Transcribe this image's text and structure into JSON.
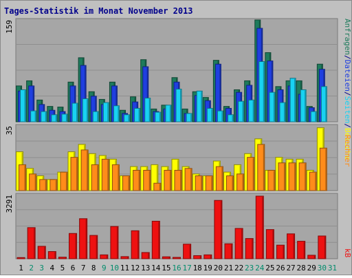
{
  "title": "Tages-Statistik im Monat November 2013",
  "colors": {
    "background": "#C0C0C0",
    "plot": "#A6A6A6",
    "grid": "#8E8E8E",
    "border": "#8A8A8A",
    "hits": "#1E7B5C",
    "files": "#1F3FE0",
    "pages": "#19D2F2",
    "visits": "#FFFF00",
    "sites": "#FF8C1A",
    "kbytes": "#EE1111",
    "title": "#00008B",
    "weekend_day": "#008B6B"
  },
  "chart_data": [
    {
      "type": "bar",
      "name": "top",
      "ymax_label": "159",
      "ylim": [
        0,
        159
      ],
      "grid": true,
      "categories": [
        "1",
        "2",
        "3",
        "4",
        "5",
        "6",
        "7",
        "8",
        "9",
        "10",
        "11",
        "12",
        "13",
        "14",
        "15",
        "16",
        "17",
        "18",
        "19",
        "20",
        "21",
        "22",
        "23",
        "24",
        "25",
        "26",
        "27",
        "28",
        "29",
        "30",
        "31"
      ],
      "series": [
        {
          "name": "Anfragen",
          "color_key": "hits",
          "values": [
            56,
            64,
            34,
            24,
            23,
            62,
            100,
            47,
            35,
            62,
            18,
            39,
            97,
            20,
            26,
            69,
            20,
            47,
            38,
            96,
            24,
            50,
            64,
            159,
            108,
            55,
            64,
            64,
            24,
            90,
            0
          ]
        },
        {
          "name": "Dateien",
          "color_key": "files",
          "values": [
            48,
            56,
            27,
            18,
            16,
            56,
            88,
            40,
            27,
            56,
            13,
            31,
            86,
            16,
            20,
            62,
            13,
            41,
            33,
            90,
            21,
            46,
            57,
            146,
            95,
            50,
            56,
            43,
            22,
            82,
            0
          ]
        },
        {
          "name": "Seiten",
          "color_key": "pages",
          "values": [
            50,
            17,
            16,
            11,
            12,
            29,
            36,
            16,
            30,
            25,
            11,
            21,
            37,
            15,
            26,
            51,
            13,
            48,
            21,
            17,
            11,
            32,
            34,
            94,
            46,
            30,
            68,
            50,
            16,
            55,
            0
          ]
        }
      ],
      "legend_labels": [
        "Anfragen",
        "/",
        "Dateien",
        "/",
        "Seiten",
        "/",
        "Besuche"
      ]
    },
    {
      "type": "bar",
      "name": "middle",
      "ymax_label": "35",
      "ylim": [
        0,
        35
      ],
      "grid": true,
      "categories": [
        "1",
        "2",
        "3",
        "4",
        "5",
        "6",
        "7",
        "8",
        "9",
        "10",
        "11",
        "12",
        "13",
        "14",
        "15",
        "16",
        "17",
        "18",
        "19",
        "20",
        "21",
        "22",
        "23",
        "24",
        "25",
        "26",
        "27",
        "28",
        "29",
        "30",
        "31"
      ],
      "series": [
        {
          "name": "Besuche",
          "color_key": "visits",
          "values": [
            21,
            12,
            8,
            6,
            10,
            21,
            25,
            20,
            19,
            17,
            8,
            13,
            13,
            14,
            13,
            17,
            13,
            9,
            8,
            16,
            10,
            14,
            20,
            28,
            11,
            18,
            17,
            17,
            11,
            34,
            0
          ]
        },
        {
          "name": "Rechner",
          "color_key": "sites",
          "values": [
            14,
            9,
            6,
            6,
            10,
            18,
            22,
            14,
            17,
            14,
            8,
            11,
            11,
            4,
            11,
            11,
            12,
            8,
            8,
            13,
            8,
            9,
            18,
            25,
            11,
            15,
            15,
            15,
            10,
            23,
            0
          ]
        }
      ],
      "legend_labels": [
        "Rechner"
      ]
    },
    {
      "type": "bar",
      "name": "bottom",
      "ymax_label": "3291",
      "ylim": [
        0,
        3291
      ],
      "grid": true,
      "categories": [
        "1",
        "2",
        "3",
        "4",
        "5",
        "6",
        "7",
        "8",
        "9",
        "10",
        "11",
        "12",
        "13",
        "14",
        "15",
        "16",
        "17",
        "18",
        "19",
        "20",
        "21",
        "22",
        "23",
        "24",
        "25",
        "26",
        "27",
        "28",
        "29",
        "30",
        "31"
      ],
      "series": [
        {
          "name": "kB",
          "color_key": "kbytes",
          "values": [
            60,
            1600,
            640,
            370,
            80,
            1300,
            2060,
            1200,
            200,
            1660,
            110,
            1440,
            320,
            1930,
            100,
            70,
            750,
            160,
            200,
            3000,
            770,
            1560,
            1040,
            3220,
            1500,
            700,
            1280,
            900,
            180,
            1170,
            0
          ]
        }
      ],
      "legend_labels": [
        "kB"
      ]
    }
  ],
  "weekend_days": [
    "2",
    "3",
    "9",
    "10",
    "16",
    "17",
    "23",
    "24",
    "30",
    "31"
  ]
}
